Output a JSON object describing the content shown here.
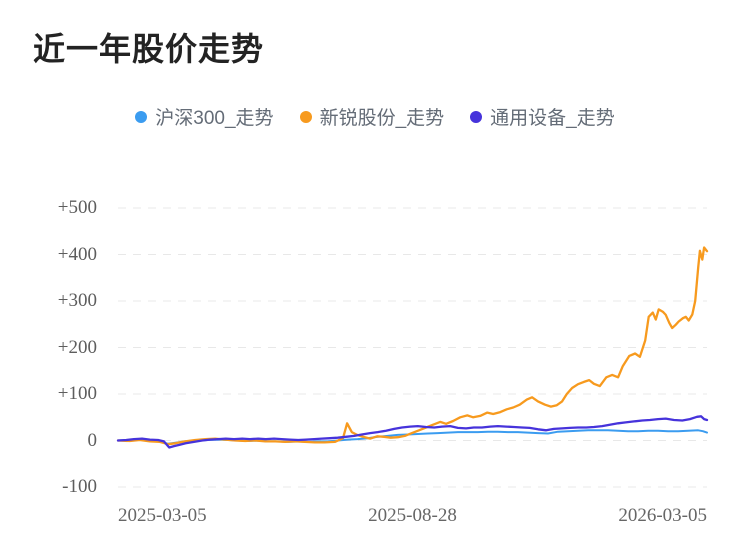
{
  "title": "近一年股价走势",
  "legend": [
    {
      "label": "沪深300_走势"
    },
    {
      "label": "新锐股份_走势"
    },
    {
      "label": "通用设备_走势"
    }
  ],
  "colors": {
    "csi300_blue": "#3b9cf0",
    "xinrui_orange": "#f79a1e",
    "general_equipment_purple": "#4633db",
    "grid": "#e8e8e8",
    "axis_text": "#5d5d5d",
    "title_text": "#232323",
    "legend_text": "#646c77"
  },
  "chart_data": {
    "type": "line",
    "title": "近一年股价走势",
    "xlabel": "",
    "ylabel": "",
    "ylim": [
      -100,
      500
    ],
    "yticks": [
      500,
      400,
      300,
      200,
      100,
      0,
      -100
    ],
    "ytick_labels": [
      "+500",
      "+400",
      "+300",
      "+200",
      "+100",
      "0",
      "-100"
    ],
    "xtick_labels": [
      "2025-03-05",
      "2025-08-28",
      "2026-03-05"
    ],
    "x_range": [
      "2025-03-05",
      "2026-03-05"
    ],
    "grid": "horizontal dashed lines on",
    "legend_position": "top-center",
    "series": [
      {
        "name": "沪深300_走势",
        "color": "#3b9cf0",
        "width": 2,
        "points": [
          [
            0,
            0
          ],
          [
            0.017,
            1
          ],
          [
            0.034,
            2
          ],
          [
            0.051,
            0
          ],
          [
            0.068,
            -1
          ],
          [
            0.085,
            -7
          ],
          [
            0.102,
            -4
          ],
          [
            0.119,
            -1
          ],
          [
            0.136,
            0
          ],
          [
            0.153,
            1
          ],
          [
            0.17,
            2
          ],
          [
            0.187,
            1
          ],
          [
            0.204,
            0
          ],
          [
            0.221,
            -1
          ],
          [
            0.238,
            0
          ],
          [
            0.255,
            -2
          ],
          [
            0.272,
            -2
          ],
          [
            0.289,
            -3
          ],
          [
            0.306,
            -2
          ],
          [
            0.323,
            -3
          ],
          [
            0.34,
            -2
          ],
          [
            0.357,
            -2
          ],
          [
            0.373,
            0
          ],
          [
            0.39,
            2
          ],
          [
            0.407,
            3
          ],
          [
            0.424,
            5
          ],
          [
            0.441,
            8
          ],
          [
            0.458,
            10
          ],
          [
            0.475,
            12
          ],
          [
            0.492,
            13
          ],
          [
            0.509,
            14
          ],
          [
            0.526,
            15
          ],
          [
            0.543,
            16
          ],
          [
            0.56,
            17
          ],
          [
            0.577,
            18
          ],
          [
            0.594,
            18
          ],
          [
            0.611,
            18
          ],
          [
            0.628,
            19
          ],
          [
            0.645,
            19
          ],
          [
            0.662,
            18
          ],
          [
            0.679,
            18
          ],
          [
            0.696,
            17
          ],
          [
            0.713,
            16
          ],
          [
            0.73,
            15
          ],
          [
            0.747,
            19
          ],
          [
            0.764,
            20
          ],
          [
            0.781,
            21
          ],
          [
            0.798,
            22
          ],
          [
            0.815,
            22
          ],
          [
            0.832,
            22
          ],
          [
            0.849,
            21
          ],
          [
            0.866,
            20
          ],
          [
            0.883,
            20
          ],
          [
            0.9,
            21
          ],
          [
            0.917,
            21
          ],
          [
            0.934,
            20
          ],
          [
            0.951,
            20
          ],
          [
            0.968,
            21
          ],
          [
            0.985,
            22
          ],
          [
            0.993,
            20
          ],
          [
            1,
            17
          ]
        ]
      },
      {
        "name": "新锐股份_走势",
        "color": "#f79a1e",
        "width": 2.3,
        "points": [
          [
            0,
            0
          ],
          [
            0.02,
            -1
          ],
          [
            0.037,
            1
          ],
          [
            0.054,
            -2
          ],
          [
            0.071,
            -3
          ],
          [
            0.085,
            -8
          ],
          [
            0.097,
            -6
          ],
          [
            0.114,
            -2
          ],
          [
            0.131,
            1
          ],
          [
            0.148,
            3
          ],
          [
            0.165,
            4
          ],
          [
            0.182,
            2
          ],
          [
            0.199,
            0
          ],
          [
            0.216,
            -1
          ],
          [
            0.233,
            0
          ],
          [
            0.25,
            -2
          ],
          [
            0.267,
            -2
          ],
          [
            0.284,
            -3
          ],
          [
            0.301,
            -2
          ],
          [
            0.317,
            -3
          ],
          [
            0.334,
            -4
          ],
          [
            0.351,
            -4
          ],
          [
            0.368,
            -3
          ],
          [
            0.382,
            5
          ],
          [
            0.389,
            37
          ],
          [
            0.397,
            18
          ],
          [
            0.406,
            12
          ],
          [
            0.416,
            8
          ],
          [
            0.428,
            4
          ],
          [
            0.44,
            9
          ],
          [
            0.452,
            8
          ],
          [
            0.463,
            6
          ],
          [
            0.475,
            7
          ],
          [
            0.487,
            10
          ],
          [
            0.499,
            16
          ],
          [
            0.511,
            22
          ],
          [
            0.523,
            28
          ],
          [
            0.535,
            34
          ],
          [
            0.547,
            40
          ],
          [
            0.557,
            36
          ],
          [
            0.569,
            42
          ],
          [
            0.581,
            50
          ],
          [
            0.593,
            54
          ],
          [
            0.603,
            50
          ],
          [
            0.615,
            53
          ],
          [
            0.627,
            60
          ],
          [
            0.637,
            57
          ],
          [
            0.649,
            61
          ],
          [
            0.66,
            67
          ],
          [
            0.671,
            71
          ],
          [
            0.682,
            77
          ],
          [
            0.694,
            88
          ],
          [
            0.703,
            93
          ],
          [
            0.713,
            84
          ],
          [
            0.725,
            77
          ],
          [
            0.735,
            73
          ],
          [
            0.745,
            76
          ],
          [
            0.754,
            84
          ],
          [
            0.762,
            100
          ],
          [
            0.771,
            113
          ],
          [
            0.781,
            121
          ],
          [
            0.791,
            126
          ],
          [
            0.8,
            130
          ],
          [
            0.808,
            122
          ],
          [
            0.818,
            117
          ],
          [
            0.829,
            136
          ],
          [
            0.839,
            141
          ],
          [
            0.849,
            136
          ],
          [
            0.857,
            160
          ],
          [
            0.868,
            182
          ],
          [
            0.878,
            187
          ],
          [
            0.886,
            180
          ],
          [
            0.895,
            215
          ],
          [
            0.901,
            266
          ],
          [
            0.908,
            275
          ],
          [
            0.913,
            260
          ],
          [
            0.918,
            282
          ],
          [
            0.925,
            277
          ],
          [
            0.93,
            270
          ],
          [
            0.936,
            253
          ],
          [
            0.941,
            242
          ],
          [
            0.947,
            249
          ],
          [
            0.952,
            256
          ],
          [
            0.959,
            263
          ],
          [
            0.964,
            266
          ],
          [
            0.969,
            258
          ],
          [
            0.975,
            271
          ],
          [
            0.98,
            300
          ],
          [
            0.985,
            372
          ],
          [
            0.988,
            408
          ],
          [
            0.992,
            389
          ],
          [
            0.995,
            415
          ],
          [
            1,
            407
          ]
        ]
      },
      {
        "name": "通用设备_走势",
        "color": "#4633db",
        "width": 2.3,
        "points": [
          [
            0,
            0
          ],
          [
            0.014,
            1
          ],
          [
            0.027,
            3
          ],
          [
            0.041,
            4
          ],
          [
            0.054,
            2
          ],
          [
            0.068,
            1
          ],
          [
            0.078,
            -2
          ],
          [
            0.087,
            -15
          ],
          [
            0.095,
            -12
          ],
          [
            0.105,
            -9
          ],
          [
            0.115,
            -6
          ],
          [
            0.129,
            -3
          ],
          [
            0.143,
            0
          ],
          [
            0.156,
            2
          ],
          [
            0.17,
            3
          ],
          [
            0.183,
            4
          ],
          [
            0.197,
            3
          ],
          [
            0.211,
            4
          ],
          [
            0.224,
            3
          ],
          [
            0.238,
            4
          ],
          [
            0.251,
            3
          ],
          [
            0.265,
            4
          ],
          [
            0.278,
            3
          ],
          [
            0.292,
            2
          ],
          [
            0.306,
            1
          ],
          [
            0.319,
            2
          ],
          [
            0.333,
            3
          ],
          [
            0.346,
            4
          ],
          [
            0.36,
            5
          ],
          [
            0.373,
            6
          ],
          [
            0.387,
            8
          ],
          [
            0.401,
            10
          ],
          [
            0.414,
            13
          ],
          [
            0.428,
            16
          ],
          [
            0.441,
            18
          ],
          [
            0.455,
            21
          ],
          [
            0.469,
            25
          ],
          [
            0.482,
            28
          ],
          [
            0.496,
            30
          ],
          [
            0.509,
            31
          ],
          [
            0.523,
            29
          ],
          [
            0.537,
            28
          ],
          [
            0.55,
            30
          ],
          [
            0.564,
            31
          ],
          [
            0.577,
            27
          ],
          [
            0.591,
            26
          ],
          [
            0.604,
            28
          ],
          [
            0.618,
            28
          ],
          [
            0.632,
            30
          ],
          [
            0.645,
            31
          ],
          [
            0.659,
            30
          ],
          [
            0.672,
            29
          ],
          [
            0.686,
            28
          ],
          [
            0.699,
            27
          ],
          [
            0.713,
            24
          ],
          [
            0.727,
            22
          ],
          [
            0.74,
            25
          ],
          [
            0.754,
            26
          ],
          [
            0.767,
            27
          ],
          [
            0.781,
            28
          ],
          [
            0.795,
            28
          ],
          [
            0.808,
            29
          ],
          [
            0.822,
            31
          ],
          [
            0.835,
            34
          ],
          [
            0.849,
            37
          ],
          [
            0.862,
            39
          ],
          [
            0.876,
            41
          ],
          [
            0.89,
            43
          ],
          [
            0.903,
            44
          ],
          [
            0.917,
            46
          ],
          [
            0.93,
            47
          ],
          [
            0.944,
            44
          ],
          [
            0.958,
            43
          ],
          [
            0.971,
            46
          ],
          [
            0.983,
            51
          ],
          [
            0.99,
            52
          ],
          [
            0.995,
            46
          ],
          [
            1,
            44
          ]
        ]
      }
    ]
  }
}
